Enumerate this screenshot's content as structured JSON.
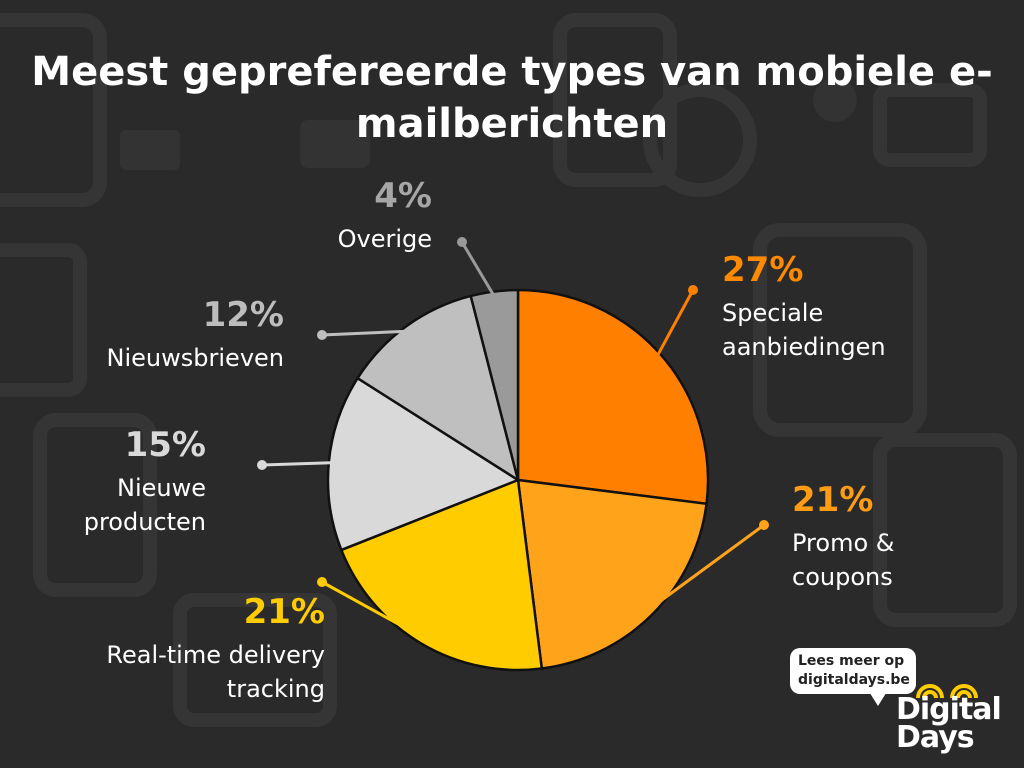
{
  "title": "Meest geprefereerde types van mobiele e-mailberichten",
  "chart_data": {
    "type": "pie",
    "title": "Meest geprefereerde types van mobiele e-mailberichten",
    "slices": [
      {
        "label": "Speciale aanbiedingen",
        "label_lines": [
          "Speciale",
          "aanbiedingen"
        ],
        "value": 27,
        "display": "27%",
        "color": "#ff8000",
        "text_color": "#ff8a00"
      },
      {
        "label": "Promo & coupons",
        "label_lines": [
          "Promo &",
          "coupons"
        ],
        "value": 21,
        "display": "21%",
        "color": "#ffa31a",
        "text_color": "#ff9c14"
      },
      {
        "label": "Real-time delivery tracking",
        "label_lines": [
          "Real-time delivery",
          "tracking"
        ],
        "value": 21,
        "display": "21%",
        "color": "#ffcc00",
        "text_color": "#ffcc00"
      },
      {
        "label": "Nieuwe producten",
        "label_lines": [
          "Nieuwe",
          "producten"
        ],
        "value": 15,
        "display": "15%",
        "color": "#d9d9d9",
        "text_color": "#d9d9d9"
      },
      {
        "label": "Nieuwsbrieven",
        "label_lines": [
          "Nieuwsbrieven"
        ],
        "value": 12,
        "display": "12%",
        "color": "#bfbfbf",
        "text_color": "#bdbdbd"
      },
      {
        "label": "Overige",
        "label_lines": [
          "Overige"
        ],
        "value": 4,
        "display": "4%",
        "color": "#9a9a9a",
        "text_color": "#a6a6a6"
      }
    ]
  },
  "promo": {
    "badge_line1": "Lees meer op",
    "badge_line2": "digitaldays.be",
    "brand_line1": "Digital",
    "brand_line2": "Days"
  }
}
